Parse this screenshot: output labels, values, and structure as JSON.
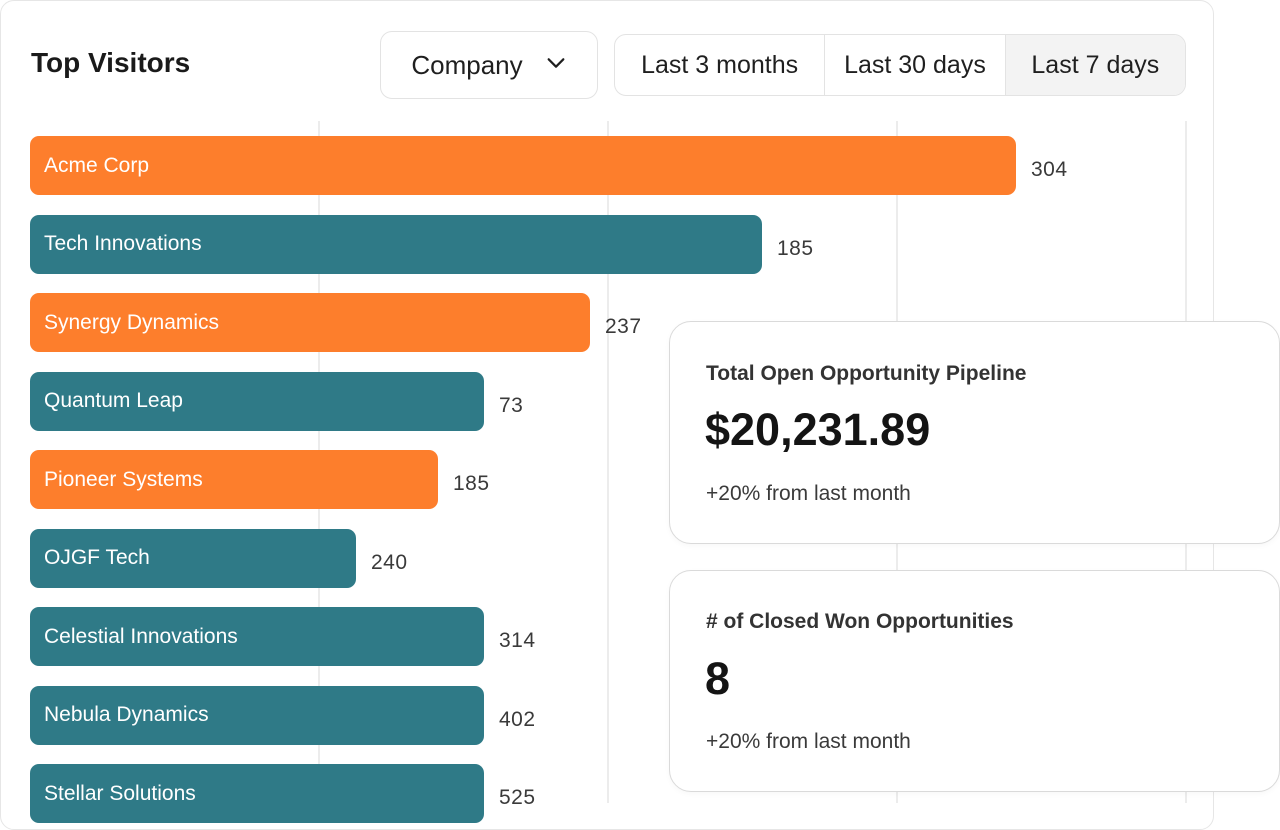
{
  "widget": {
    "title": "Top Visitors",
    "group_by": {
      "selected": "Company",
      "icon": "chevron-down-icon"
    },
    "ranges": [
      {
        "label": "Last 3 months",
        "active": false
      },
      {
        "label": "Last 30 days",
        "active": false
      },
      {
        "label": "Last 7 days",
        "active": true
      }
    ]
  },
  "colors": {
    "orange": "#fd7e2c",
    "teal": "#2f7a87"
  },
  "chart_data": {
    "type": "bar",
    "orientation": "horizontal",
    "categories": [
      "Acme Corp",
      "Tech Innovations",
      "Synergy Dynamics",
      "Quantum Leap",
      "Pioneer Systems",
      "OJGF Tech",
      "Celestial Innovations",
      "Nebula Dynamics",
      "Stellar Solutions"
    ],
    "values": [
      304,
      185,
      237,
      73,
      185,
      240,
      314,
      402,
      525
    ],
    "bar_colors": [
      "orange",
      "teal",
      "orange",
      "teal",
      "orange",
      "teal",
      "teal",
      "teal",
      "teal"
    ]
  },
  "kpis": [
    {
      "label": "Total Open Opportunity Pipeline",
      "value": "$20,231.89",
      "change": "+20% from last month"
    },
    {
      "label": "# of Closed Won Opportunities",
      "value": "8",
      "change": "+20% from last month"
    }
  ]
}
